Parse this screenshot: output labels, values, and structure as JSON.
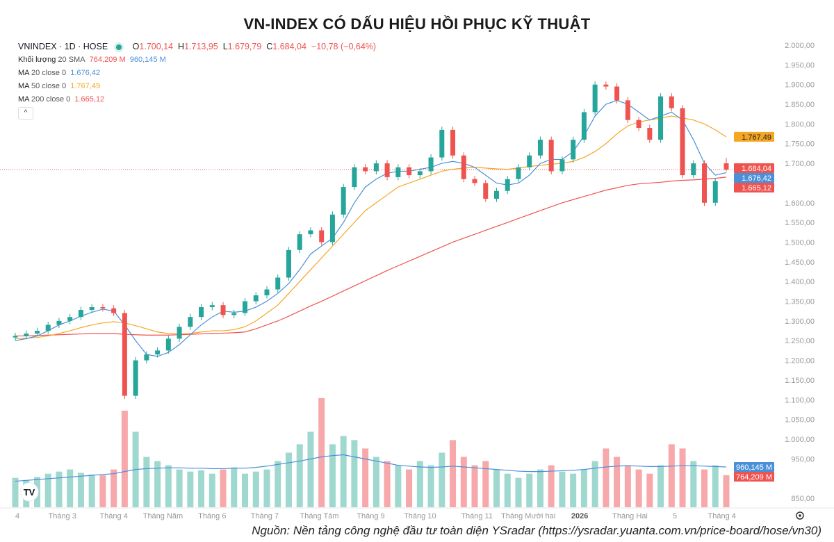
{
  "title": "VN-INDEX CÓ DẤU HIỆU HỒI PHỤC KỸ THUẬT",
  "legend": {
    "symbol": "VNINDEX · 1D · HOSE",
    "o_label": "O",
    "o": "1.700,14",
    "h_label": "H",
    "h": "1.713,95",
    "l_label": "L",
    "l": "1.679,79",
    "c_label": "C",
    "c": "1.684,04",
    "change": "−10,78 (−0,64%)",
    "volume_label": "Khối lượng",
    "volume_sma_label": "20 SMA",
    "volume_value": "764,209 M",
    "volume_sma_value": "960,145 M",
    "ma20_label": "MA",
    "ma20_params": "20 close 0",
    "ma20_value": "1.676,42",
    "ma50_label": "MA",
    "ma50_params": "50 close 0",
    "ma50_value": "1.767,49",
    "ma200_label": "MA",
    "ma200_params": "200 close 0",
    "ma200_value": "1.665,12",
    "collapse_icon": "^"
  },
  "source": "Nguồn: Nền tảng công nghệ đầu tư toàn diện YSradar (https://ysradar.yuanta.com.vn/price-board/hose/vn30)",
  "colors": {
    "up": "#26a69a",
    "down": "#ef5350",
    "ma20": "#4a90d9",
    "ma50": "#f5a623",
    "ma200": "#ef5350",
    "vol_up": "#9fd8cf",
    "vol_down": "#f6a8ab"
  },
  "chart_data": {
    "type": "candlestick",
    "title": "VN-INDEX CÓ DẤU HIỆU HỒI PHỤC KỸ THUẬT",
    "ylim": [
      850,
      2000
    ],
    "y_ticks": [
      "2.000,00",
      "1.950,00",
      "1.900,00",
      "1.850,00",
      "1.800,00",
      "1.750,00",
      "1.700,00",
      "1.600,00",
      "1.550,00",
      "1.500,00",
      "1.450,00",
      "1.400,00",
      "1.350,00",
      "1.300,00",
      "1.250,00",
      "1.200,00",
      "1.150,00",
      "1.100,00",
      "1.050,00",
      "1.000,00",
      "950,00",
      "850,00"
    ],
    "y_tick_values": [
      2000,
      1950,
      1900,
      1850,
      1800,
      1750,
      1700,
      1600,
      1550,
      1500,
      1450,
      1400,
      1350,
      1300,
      1250,
      1200,
      1150,
      1100,
      1050,
      1000,
      950,
      850
    ],
    "x_labels": [
      {
        "label": "4",
        "index": 0
      },
      {
        "label": "Tháng 3",
        "index": 4.3
      },
      {
        "label": "Tháng 4",
        "index": 9
      },
      {
        "label": "Tháng Năm",
        "index": 13.5
      },
      {
        "label": "Tháng 6",
        "index": 18
      },
      {
        "label": "Tháng 7",
        "index": 22.8
      },
      {
        "label": "Tháng Tám",
        "index": 27.8
      },
      {
        "label": "Tháng 9",
        "index": 32.5
      },
      {
        "label": "Tháng 10",
        "index": 37
      },
      {
        "label": "Tháng 11",
        "index": 42.2
      },
      {
        "label": "Tháng Mười hai",
        "index": 46.9
      },
      {
        "label": "2026",
        "index": 51.6,
        "bold": true
      },
      {
        "label": "Tháng Hai",
        "index": 56.2
      },
      {
        "label": "5",
        "index": 60.3
      },
      {
        "label": "Tháng 4",
        "index": 64.6
      }
    ],
    "close": [
      1262,
      1268,
      1275,
      1290,
      1300,
      1310,
      1328,
      1335,
      1332,
      1320,
      1110,
      1200,
      1215,
      1225,
      1255,
      1285,
      1310,
      1335,
      1340,
      1315,
      1320,
      1350,
      1365,
      1380,
      1410,
      1480,
      1520,
      1530,
      1500,
      1570,
      1640,
      1690,
      1680,
      1700,
      1665,
      1690,
      1670,
      1680,
      1715,
      1785,
      1720,
      1660,
      1650,
      1610,
      1630,
      1660,
      1690,
      1720,
      1760,
      1680,
      1710,
      1760,
      1830,
      1900,
      1895,
      1860,
      1810,
      1790,
      1760,
      1870,
      1840,
      1670,
      1700,
      1600,
      1655,
      1684.04
    ],
    "last_ohlc": {
      "open": 1700.14,
      "high": 1713.95,
      "low": 1679.79,
      "close": 1684.04
    },
    "ma20": [
      1250,
      1255,
      1262,
      1275,
      1290,
      1300,
      1312,
      1322,
      1330,
      1325,
      1290,
      1250,
      1215,
      1210,
      1220,
      1240,
      1265,
      1290,
      1310,
      1325,
      1322,
      1325,
      1335,
      1350,
      1370,
      1395,
      1430,
      1470,
      1490,
      1510,
      1550,
      1600,
      1640,
      1660,
      1675,
      1680,
      1680,
      1685,
      1690,
      1700,
      1705,
      1700,
      1690,
      1670,
      1650,
      1645,
      1650,
      1670,
      1700,
      1710,
      1710,
      1730,
      1770,
      1820,
      1850,
      1860,
      1850,
      1830,
      1810,
      1820,
      1830,
      1810,
      1760,
      1700,
      1670,
      1676.42
    ],
    "ma50": [
      1255,
      1256,
      1258,
      1262,
      1268,
      1275,
      1283,
      1290,
      1295,
      1298,
      1295,
      1288,
      1280,
      1272,
      1268,
      1267,
      1268,
      1272,
      1275,
      1275,
      1278,
      1285,
      1300,
      1320,
      1340,
      1370,
      1400,
      1430,
      1460,
      1490,
      1520,
      1550,
      1580,
      1600,
      1620,
      1640,
      1650,
      1660,
      1670,
      1680,
      1685,
      1688,
      1690,
      1688,
      1686,
      1685,
      1688,
      1692,
      1695,
      1698,
      1700,
      1705,
      1715,
      1730,
      1750,
      1775,
      1795,
      1805,
      1810,
      1815,
      1820,
      1815,
      1810,
      1800,
      1785,
      1767.49
    ],
    "ma200": [
      1262,
      1262,
      1263,
      1264,
      1265,
      1266,
      1267,
      1268,
      1268,
      1268,
      1266,
      1265,
      1264,
      1264,
      1264,
      1265,
      1266,
      1267,
      1268,
      1269,
      1270,
      1272,
      1280,
      1290,
      1300,
      1312,
      1325,
      1338,
      1350,
      1363,
      1376,
      1389,
      1402,
      1415,
      1428,
      1440,
      1452,
      1464,
      1476,
      1488,
      1500,
      1510,
      1520,
      1530,
      1540,
      1550,
      1560,
      1570,
      1580,
      1590,
      1600,
      1608,
      1616,
      1624,
      1632,
      1638,
      1644,
      1648,
      1650,
      1652,
      1655,
      1657,
      1658,
      1660,
      1662,
      1665.12
    ],
    "volume_m": [
      700,
      650,
      720,
      800,
      850,
      900,
      820,
      780,
      760,
      900,
      2300,
      1800,
      1200,
      1100,
      1000,
      900,
      850,
      880,
      800,
      900,
      950,
      800,
      850,
      900,
      1100,
      1300,
      1500,
      1800,
      2600,
      1500,
      1700,
      1600,
      1400,
      1200,
      1100,
      1000,
      900,
      1100,
      1000,
      1300,
      1600,
      1200,
      1000,
      1100,
      900,
      800,
      700,
      800,
      900,
      1000,
      850,
      800,
      900,
      1100,
      1400,
      1200,
      1000,
      900,
      800,
      1000,
      1500,
      1400,
      1100,
      900,
      1000,
      764.209
    ],
    "volume_sma_m": [
      620,
      640,
      660,
      680,
      700,
      720,
      740,
      760,
      780,
      800,
      850,
      900,
      920,
      930,
      940,
      940,
      930,
      930,
      920,
      920,
      930,
      930,
      950,
      980,
      1020,
      1060,
      1100,
      1150,
      1200,
      1230,
      1250,
      1200,
      1150,
      1100,
      1050,
      1000,
      980,
      960,
      950,
      960,
      980,
      960,
      940,
      920,
      900,
      880,
      860,
      850,
      850,
      860,
      870,
      880,
      900,
      930,
      960,
      980,
      990,
      980,
      970,
      970,
      980,
      990,
      990,
      980,
      970,
      960.145
    ],
    "price_tags": [
      {
        "label": "1.767,49",
        "value": 1767.49,
        "color": "#f5a623"
      },
      {
        "label": "1.684,04",
        "value": 1684.04,
        "color": "#ef5350"
      },
      {
        "label": "1.676,42",
        "value": 1676.42,
        "color": "#4a90d9"
      },
      {
        "label": "1.665,12",
        "value": 1665.12,
        "color": "#ef5350"
      }
    ],
    "volume_tags": [
      {
        "label": "960,145 M",
        "color": "#4a90d9"
      },
      {
        "label": "764,209 M",
        "color": "#ef5350"
      }
    ]
  }
}
